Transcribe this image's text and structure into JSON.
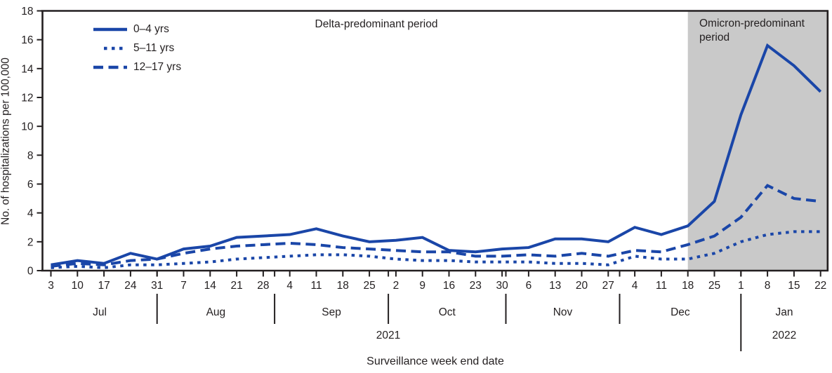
{
  "chart_data": {
    "type": "line",
    "title": "",
    "xlabel": "Surveillance week end date",
    "ylabel": "No. of hospitalizations per 100,000",
    "ylim": [
      0,
      18
    ],
    "ytick_step": 2,
    "grid": false,
    "legend_position": "top-left-inside",
    "categories": [
      "Jul 3",
      "Jul 10",
      "Jul 17",
      "Jul 24",
      "Jul 31",
      "Aug 7",
      "Aug 14",
      "Aug 21",
      "Aug 28",
      "Sep 4",
      "Sep 11",
      "Sep 18",
      "Sep 25",
      "Oct 2",
      "Oct 9",
      "Oct 16",
      "Oct 23",
      "Oct 30",
      "Nov 6",
      "Nov 13",
      "Nov 20",
      "Nov 27",
      "Dec 4",
      "Dec 11",
      "Dec 18",
      "Dec 25",
      "Jan 1",
      "Jan 8",
      "Jan 15",
      "Jan 22"
    ],
    "months": [
      {
        "label": "Jul",
        "weeks": 5
      },
      {
        "label": "Aug",
        "weeks": 4
      },
      {
        "label": "Sep",
        "weeks": 4
      },
      {
        "label": "Oct",
        "weeks": 5
      },
      {
        "label": "Nov",
        "weeks": 4
      },
      {
        "label": "Dec",
        "weeks": 4
      },
      {
        "label": "Jan",
        "weeks": 4
      }
    ],
    "series": [
      {
        "name": "0–4 yrs",
        "dash": "solid",
        "values": [
          0.4,
          0.7,
          0.5,
          1.2,
          0.8,
          1.5,
          1.7,
          2.3,
          2.4,
          2.5,
          2.9,
          2.4,
          2.0,
          2.1,
          2.3,
          1.4,
          1.3,
          1.5,
          1.6,
          2.2,
          2.2,
          2.0,
          3.0,
          2.5,
          3.1,
          4.8,
          10.8,
          15.6,
          14.2,
          12.4
        ]
      },
      {
        "name": "5–11 yrs",
        "dash": "dotted",
        "values": [
          0.2,
          0.3,
          0.2,
          0.4,
          0.4,
          0.5,
          0.6,
          0.8,
          0.9,
          1.0,
          1.1,
          1.1,
          1.0,
          0.8,
          0.7,
          0.7,
          0.6,
          0.6,
          0.6,
          0.5,
          0.5,
          0.4,
          1.0,
          0.8,
          0.8,
          1.2,
          2.0,
          2.5,
          2.7,
          2.7
        ]
      },
      {
        "name": "12–17 yrs",
        "dash": "dashed",
        "values": [
          0.3,
          0.5,
          0.4,
          0.7,
          0.8,
          1.2,
          1.5,
          1.7,
          1.8,
          1.9,
          1.8,
          1.6,
          1.5,
          1.4,
          1.3,
          1.3,
          1.0,
          1.0,
          1.1,
          1.0,
          1.2,
          1.0,
          1.4,
          1.3,
          1.8,
          2.4,
          3.7,
          5.9,
          5.0,
          4.8
        ]
      }
    ],
    "shaded_region": {
      "start_category": "Dec 18",
      "start_category_index": 24,
      "color": "#c9c9c9"
    },
    "annotations": {
      "delta": "Delta-predominant period",
      "omicron": "Omicron-predominant period",
      "year_left": "2021",
      "year_right": "2022"
    },
    "colors": {
      "line": "#1a46a8",
      "shade": "#c9c9c9",
      "axis": "#231f20",
      "text": "#231f20"
    }
  }
}
